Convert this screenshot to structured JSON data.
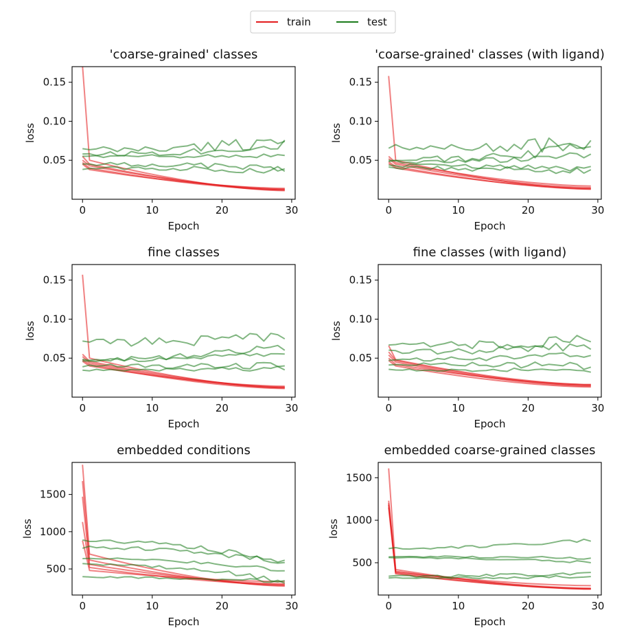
{
  "legend": {
    "entries": [
      {
        "label": "train",
        "color": "#e31a1c"
      },
      {
        "label": "test",
        "color": "#1a7a1a"
      }
    ]
  },
  "chart_data": [
    {
      "type": "line",
      "title": "'coarse-grained' classes",
      "xlabel": "Epoch",
      "ylabel": "loss",
      "xlim": [
        -1.5,
        30.5
      ],
      "ylim": [
        0.0,
        0.17
      ],
      "xticks": [
        0,
        10,
        20,
        30
      ],
      "yticks": [
        0.05,
        0.1,
        0.15
      ],
      "ytick_labels": [
        "0.05",
        "0.10",
        "0.15"
      ],
      "grid": false,
      "series": [
        {
          "group": "train",
          "start": 0.171,
          "second": 0.05,
          "end": 0.011
        },
        {
          "group": "train",
          "start": 0.055,
          "second": 0.045,
          "end": 0.012
        },
        {
          "group": "train",
          "start": 0.05,
          "second": 0.043,
          "end": 0.013
        },
        {
          "group": "train",
          "start": 0.047,
          "second": 0.04,
          "end": 0.012
        },
        {
          "group": "train",
          "start": 0.045,
          "second": 0.038,
          "end": 0.014
        },
        {
          "group": "test",
          "base": 0.063,
          "end": 0.075,
          "wiggle": 0.006
        },
        {
          "group": "test",
          "base": 0.058,
          "end": 0.07,
          "wiggle": 0.004
        },
        {
          "group": "test",
          "base": 0.055,
          "end": 0.056,
          "wiggle": 0.002
        },
        {
          "group": "test",
          "base": 0.045,
          "end": 0.04,
          "wiggle": 0.003
        },
        {
          "group": "test",
          "base": 0.04,
          "end": 0.037,
          "wiggle": 0.003
        }
      ]
    },
    {
      "type": "line",
      "title": "'coarse-grained' classes (with ligand)",
      "xlabel": "Epoch",
      "ylabel": "loss",
      "xlim": [
        -1.5,
        30.5
      ],
      "ylim": [
        0.0,
        0.17
      ],
      "xticks": [
        0,
        10,
        20,
        30
      ],
      "yticks": [
        0.05,
        0.1,
        0.15
      ],
      "ytick_labels": [
        "0.05",
        "0.10",
        "0.15"
      ],
      "grid": false,
      "series": [
        {
          "group": "train",
          "start": 0.158,
          "second": 0.05,
          "end": 0.013
        },
        {
          "group": "train",
          "start": 0.055,
          "second": 0.047,
          "end": 0.017
        },
        {
          "group": "train",
          "start": 0.052,
          "second": 0.045,
          "end": 0.015
        },
        {
          "group": "train",
          "start": 0.048,
          "second": 0.042,
          "end": 0.013
        },
        {
          "group": "train",
          "start": 0.046,
          "second": 0.04,
          "end": 0.014
        },
        {
          "group": "test",
          "base": 0.066,
          "end": 0.072,
          "wiggle": 0.007
        },
        {
          "group": "test",
          "base": 0.05,
          "end": 0.068,
          "wiggle": 0.005
        },
        {
          "group": "test",
          "base": 0.048,
          "end": 0.057,
          "wiggle": 0.003
        },
        {
          "group": "test",
          "base": 0.043,
          "end": 0.04,
          "wiggle": 0.003
        },
        {
          "group": "test",
          "base": 0.04,
          "end": 0.035,
          "wiggle": 0.003
        }
      ]
    },
    {
      "type": "line",
      "title": "fine classes",
      "xlabel": "Epoch",
      "ylabel": "loss",
      "xlim": [
        -1.5,
        30.5
      ],
      "ylim": [
        0.0,
        0.17
      ],
      "xticks": [
        0,
        10,
        20,
        30
      ],
      "yticks": [
        0.05,
        0.1,
        0.15
      ],
      "ytick_labels": [
        "0.05",
        "0.10",
        "0.15"
      ],
      "grid": false,
      "series": [
        {
          "group": "train",
          "start": 0.157,
          "second": 0.05,
          "end": 0.012
        },
        {
          "group": "train",
          "start": 0.055,
          "second": 0.046,
          "end": 0.013
        },
        {
          "group": "train",
          "start": 0.052,
          "second": 0.044,
          "end": 0.012
        },
        {
          "group": "train",
          "start": 0.048,
          "second": 0.042,
          "end": 0.011
        },
        {
          "group": "train",
          "start": 0.046,
          "second": 0.04,
          "end": 0.014
        },
        {
          "group": "test",
          "base": 0.07,
          "end": 0.08,
          "wiggle": 0.006
        },
        {
          "group": "test",
          "base": 0.048,
          "end": 0.066,
          "wiggle": 0.004
        },
        {
          "group": "test",
          "base": 0.047,
          "end": 0.058,
          "wiggle": 0.003
        },
        {
          "group": "test",
          "base": 0.04,
          "end": 0.04,
          "wiggle": 0.003
        },
        {
          "group": "test",
          "base": 0.035,
          "end": 0.037,
          "wiggle": 0.002
        }
      ]
    },
    {
      "type": "line",
      "title": "fine classes (with ligand)",
      "xlabel": "Epoch",
      "ylabel": "loss",
      "xlim": [
        -1.5,
        30.5
      ],
      "ylim": [
        0.0,
        0.17
      ],
      "xticks": [
        0,
        10,
        20,
        30
      ],
      "yticks": [
        0.05,
        0.1,
        0.15
      ],
      "ytick_labels": [
        "0.05",
        "0.10",
        "0.15"
      ],
      "grid": false,
      "series": [
        {
          "group": "train",
          "start": 0.066,
          "second": 0.048,
          "end": 0.016
        },
        {
          "group": "train",
          "start": 0.058,
          "second": 0.047,
          "end": 0.015
        },
        {
          "group": "train",
          "start": 0.054,
          "second": 0.045,
          "end": 0.014
        },
        {
          "group": "train",
          "start": 0.05,
          "second": 0.042,
          "end": 0.016
        },
        {
          "group": "train",
          "start": 0.047,
          "second": 0.04,
          "end": 0.013
        },
        {
          "group": "test",
          "base": 0.066,
          "end": 0.074,
          "wiggle": 0.005
        },
        {
          "group": "test",
          "base": 0.058,
          "end": 0.066,
          "wiggle": 0.004
        },
        {
          "group": "test",
          "base": 0.048,
          "end": 0.056,
          "wiggle": 0.003
        },
        {
          "group": "test",
          "base": 0.042,
          "end": 0.04,
          "wiggle": 0.003
        },
        {
          "group": "test",
          "base": 0.035,
          "end": 0.035,
          "wiggle": 0.002
        }
      ]
    },
    {
      "type": "line",
      "title": "embedded conditions",
      "xlabel": "Epoch",
      "ylabel": "loss",
      "xlim": [
        -1.5,
        30.5
      ],
      "ylim": [
        150,
        1930
      ],
      "xticks": [
        0,
        10,
        20,
        30
      ],
      "yticks": [
        500,
        1000,
        1500
      ],
      "ytick_labels": [
        "500",
        "1000",
        "1500"
      ],
      "grid": false,
      "series": [
        {
          "group": "train",
          "start": 1900,
          "second": 700,
          "end": 270
        },
        {
          "group": "train",
          "start": 1680,
          "second": 620,
          "end": 280
        },
        {
          "group": "train",
          "start": 1470,
          "second": 560,
          "end": 300
        },
        {
          "group": "train",
          "start": 1130,
          "second": 520,
          "end": 290
        },
        {
          "group": "train",
          "start": 880,
          "second": 480,
          "end": 330
        },
        {
          "group": "test",
          "base": 880,
          "end": 580,
          "wiggle": 30
        },
        {
          "group": "test",
          "base": 790,
          "end": 590,
          "wiggle": 25
        },
        {
          "group": "test",
          "base": 640,
          "end": 480,
          "wiggle": 15
        },
        {
          "group": "test",
          "base": 560,
          "end": 340,
          "wiggle": 20
        },
        {
          "group": "test",
          "base": 390,
          "end": 330,
          "wiggle": 15
        }
      ]
    },
    {
      "type": "line",
      "title": "embedded coarse-grained classes",
      "xlabel": "Epoch",
      "ylabel": "loss",
      "xlim": [
        -1.5,
        30.5
      ],
      "ylim": [
        120,
        1680
      ],
      "xticks": [
        0,
        10,
        20,
        30
      ],
      "yticks": [
        500,
        1000,
        1500
      ],
      "ytick_labels": [
        "500",
        "1000",
        "1500"
      ],
      "grid": false,
      "series": [
        {
          "group": "train",
          "start": 1610,
          "second": 420,
          "end": 190
        },
        {
          "group": "train",
          "start": 1230,
          "second": 400,
          "end": 200
        },
        {
          "group": "train",
          "start": 1200,
          "second": 390,
          "end": 230
        },
        {
          "group": "train",
          "start": 1180,
          "second": 380,
          "end": 190
        },
        {
          "group": "train",
          "start": 1150,
          "second": 370,
          "end": 195
        },
        {
          "group": "test",
          "base": 670,
          "end": 770,
          "wiggle": 15
        },
        {
          "group": "test",
          "base": 570,
          "end": 560,
          "wiggle": 12
        },
        {
          "group": "test",
          "base": 560,
          "end": 500,
          "wiggle": 10
        },
        {
          "group": "test",
          "base": 340,
          "end": 380,
          "wiggle": 15
        },
        {
          "group": "test",
          "base": 320,
          "end": 340,
          "wiggle": 12
        }
      ]
    }
  ]
}
